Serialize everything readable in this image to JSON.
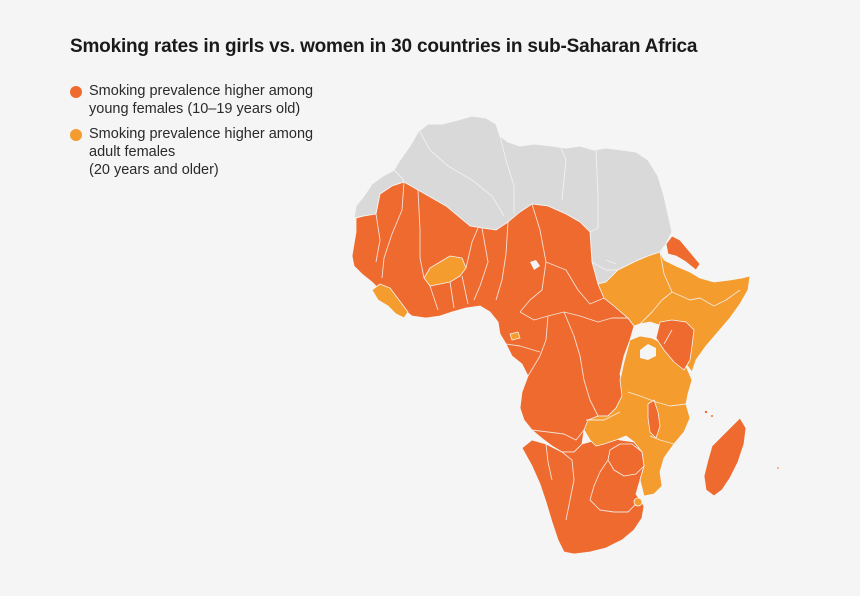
{
  "title": "Smoking rates in girls vs. women in 30 countries in sub-Saharan Africa",
  "legend": [
    {
      "lines": [
        "Smoking prevalence higher among",
        "young females (10–19 years old)"
      ],
      "color": "#ef6a2e"
    },
    {
      "lines": [
        "Smoking prevalence higher among",
        "adult females",
        "(20 years and older)"
      ],
      "color": "#f49c2e"
    }
  ],
  "colors": {
    "background": "#f5f5f5",
    "no_data": "#d9d9d9",
    "young_higher": "#ef6a2e",
    "adult_higher": "#f49c2e",
    "borders": "#f5f5f5"
  }
}
